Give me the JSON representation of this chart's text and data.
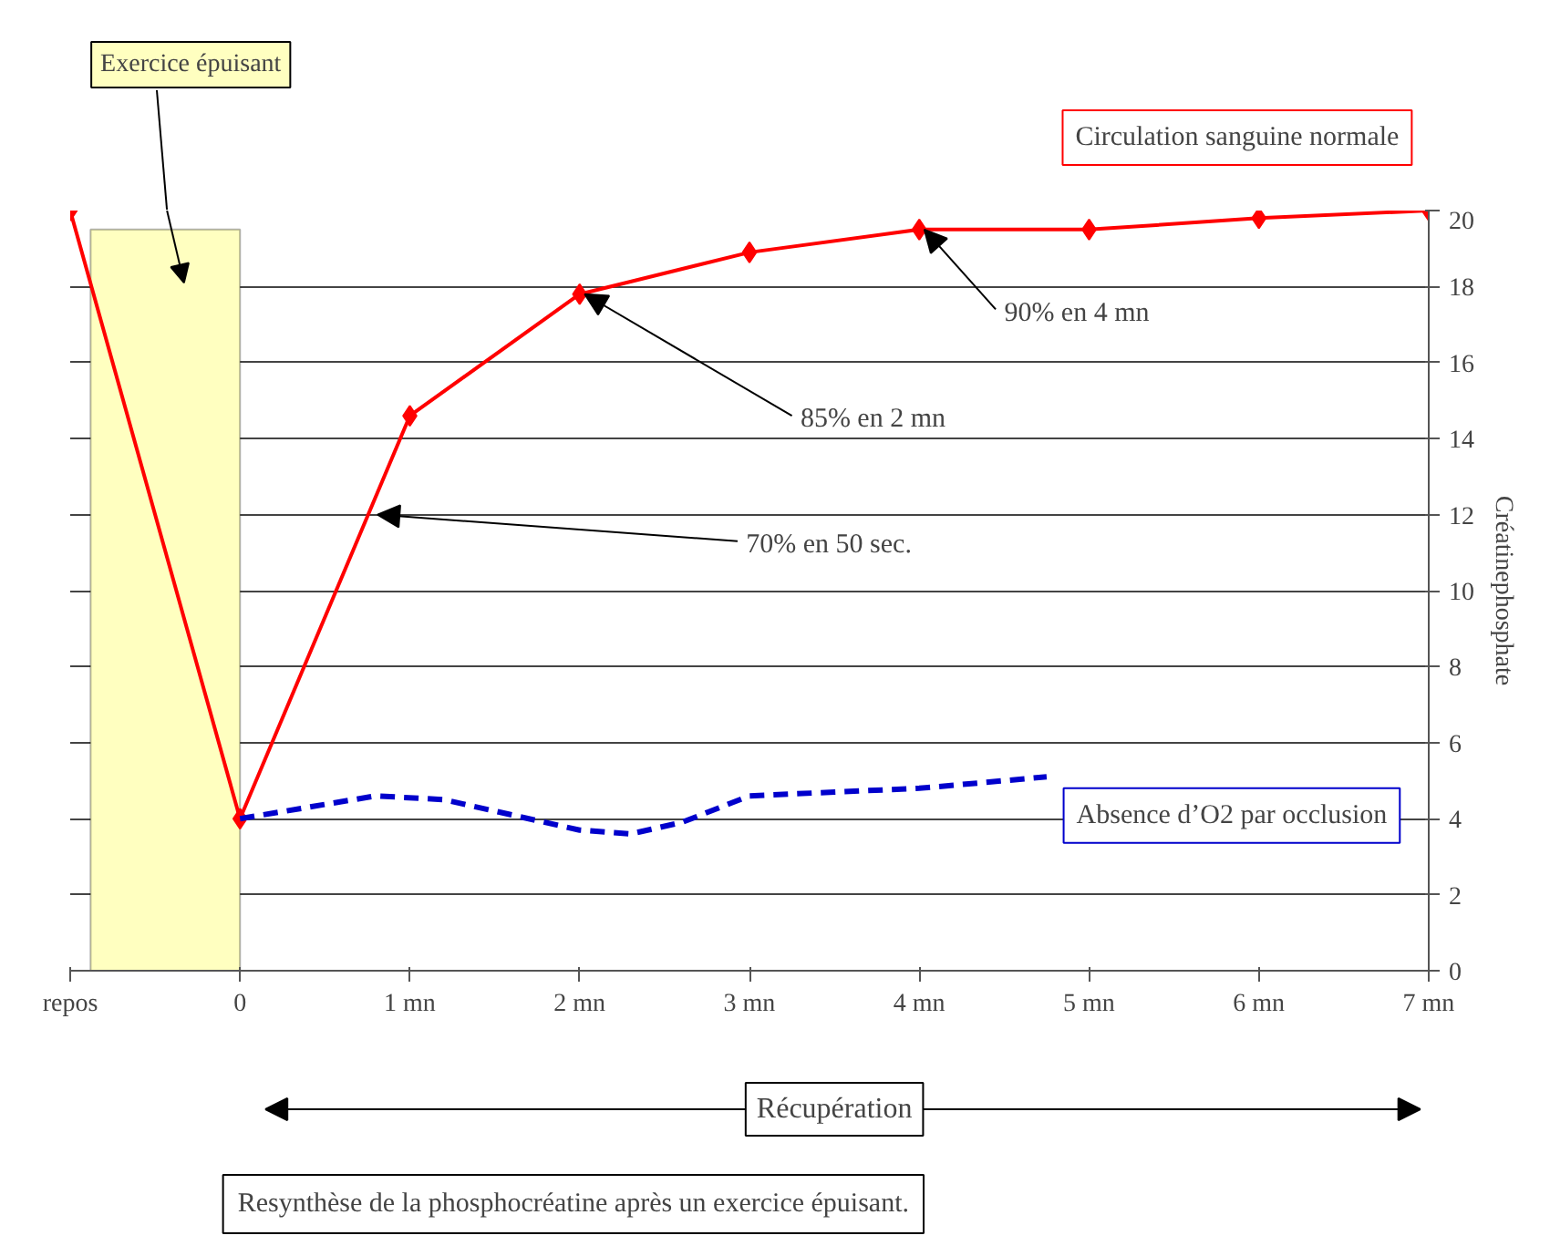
{
  "chart_data": {
    "type": "line",
    "ylabel": "Créatinephosphate",
    "xlim": [
      -1,
      7
    ],
    "xticks": [
      {
        "value": -1,
        "label": "repos"
      },
      0,
      {
        "value": 1,
        "label": "1 mn"
      },
      {
        "value": 2,
        "label": "2 mn"
      },
      {
        "value": 3,
        "label": "3 mn"
      },
      {
        "value": 4,
        "label": "4 mn"
      },
      {
        "value": 5,
        "label": "5 mn"
      },
      {
        "value": 6,
        "label": "6 mn"
      },
      {
        "value": 7,
        "label": "7 mn"
      }
    ],
    "ylim": [
      0,
      20
    ],
    "yticks": [
      0,
      2,
      4,
      6,
      8,
      10,
      12,
      14,
      16,
      18,
      20
    ],
    "grid": "y",
    "legend": false,
    "series": [
      {
        "name": "Circulation sanguine normale",
        "color": "#ff0000",
        "marker": "diamond",
        "line_style": "solid",
        "x": [
          -1,
          0,
          1,
          2,
          3,
          4,
          5,
          6,
          7
        ],
        "values": [
          20,
          4,
          14.6,
          17.8,
          18.9,
          19.5,
          19.5,
          19.8,
          20
        ]
      },
      {
        "name": "Absence d’O2 par occlusion",
        "color": "#0000cc",
        "marker": "none",
        "line_style": "dashed",
        "x": [
          0,
          0.8,
          1.2,
          2,
          2.3,
          2.6,
          3,
          3.5,
          4,
          4.75
        ],
        "values": [
          4,
          4.6,
          4.5,
          3.7,
          3.6,
          3.9,
          4.6,
          4.7,
          4.8,
          5.1
        ]
      }
    ],
    "bands": [
      {
        "axis": "x",
        "from": -0.88,
        "to": 0,
        "color": "#ffffc0"
      }
    ],
    "annotations": [
      "Exercice épuisant",
      {
        "text": "70% en 50 sec.",
        "x": 0.78,
        "y": 12
      },
      {
        "text": "85% en 2 mn",
        "x": 2,
        "y": 17.8
      },
      {
        "text": "90% en 4 mn",
        "x": 4,
        "y": 19.5
      },
      "Récupération",
      "Resynthèse de la phosphocréatine après un exercice épuisant."
    ]
  }
}
